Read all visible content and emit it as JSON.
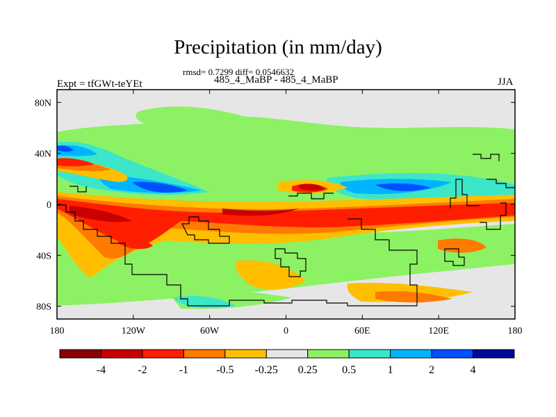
{
  "title": "Precipitation (in mm/day)",
  "stats_line": "rmsd= 0.7299 diff= 0.0546632",
  "experiment_label": "Expt = tfGWt-teYEt",
  "comparison": "485_4_MaBP - 485_4_MaBP",
  "season": "JJA",
  "map": {
    "projection": "cylindrical-equidistant",
    "lon_range": [
      -180,
      180
    ],
    "lat_range": [
      -90,
      90
    ],
    "background_color": "#e6e6e6",
    "x_ticks": [
      "180",
      "120W",
      "60W",
      "0",
      "60E",
      "120E",
      "180"
    ],
    "x_tick_values": [
      -180,
      -120,
      -60,
      0,
      60,
      120,
      180
    ],
    "y_ticks": [
      "80N",
      "40N",
      "0",
      "40S",
      "80S"
    ],
    "y_tick_values": [
      80,
      40,
      0,
      -40,
      -80
    ]
  },
  "colorbar": {
    "labels": [
      "-4",
      "-2",
      "-1",
      "-0.5",
      "-0.25",
      "0.25",
      "0.5",
      "1",
      "2",
      "4"
    ],
    "colors": [
      "#8b0000",
      "#c80000",
      "#ff1e00",
      "#ff7a00",
      "#ffbf00",
      "#e6e6e6",
      "#8cf264",
      "#3ce6c8",
      "#00b4ff",
      "#0050ff",
      "#000a96"
    ]
  }
}
